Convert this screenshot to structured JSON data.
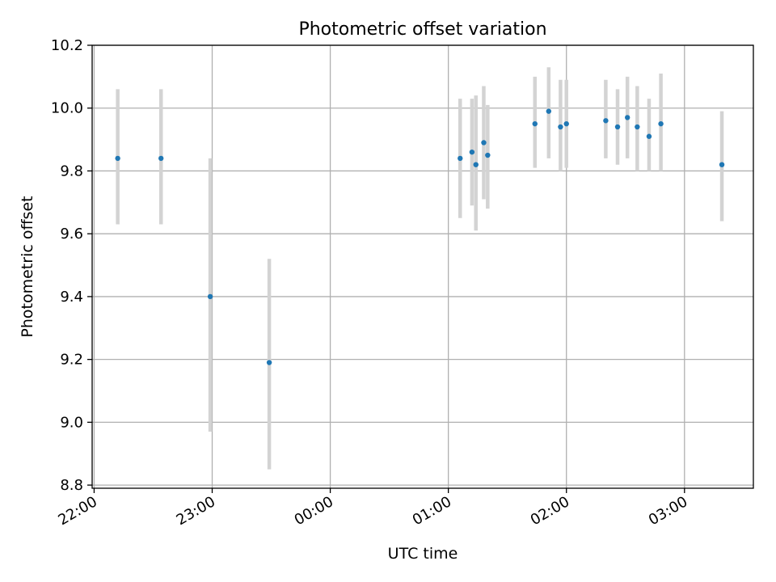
{
  "chart_data": {
    "type": "scatter",
    "title": "Photometric offset variation",
    "xlabel": "UTC time",
    "ylabel": "Photometric offset",
    "grid": true,
    "x_axis": {
      "type": "time",
      "range": [
        "21:59",
        "03:35"
      ],
      "ticks": [
        "22:00",
        "23:00",
        "00:00",
        "01:00",
        "02:00",
        "03:00"
      ]
    },
    "y_axis": {
      "range": [
        8.79,
        10.2
      ],
      "ticks": [
        "8.8",
        "9.0",
        "9.2",
        "9.4",
        "9.6",
        "9.8",
        "10.0",
        "10.2"
      ]
    },
    "series": [
      {
        "color": "#1f77b4",
        "errorbar_color": "#d3d3d3",
        "points": [
          {
            "x": "22:12",
            "y": 9.84,
            "err_low": 9.63,
            "err_high": 10.06
          },
          {
            "x": "22:34",
            "y": 9.84,
            "err_low": 9.63,
            "err_high": 10.06
          },
          {
            "x": "22:59",
            "y": 9.4,
            "err_low": 8.97,
            "err_high": 9.84
          },
          {
            "x": "23:29",
            "y": 9.19,
            "err_low": 8.85,
            "err_high": 9.52
          },
          {
            "x": "01:06",
            "y": 9.84,
            "err_low": 9.65,
            "err_high": 10.03
          },
          {
            "x": "01:12",
            "y": 9.86,
            "err_low": 9.69,
            "err_high": 10.03
          },
          {
            "x": "01:14",
            "y": 9.82,
            "err_low": 9.61,
            "err_high": 10.04
          },
          {
            "x": "01:18",
            "y": 9.89,
            "err_low": 9.71,
            "err_high": 10.07
          },
          {
            "x": "01:20",
            "y": 9.85,
            "err_low": 9.68,
            "err_high": 10.01
          },
          {
            "x": "01:44",
            "y": 9.95,
            "err_low": 9.81,
            "err_high": 10.1
          },
          {
            "x": "01:51",
            "y": 9.99,
            "err_low": 9.84,
            "err_high": 10.13
          },
          {
            "x": "01:57",
            "y": 9.94,
            "err_low": 9.8,
            "err_high": 10.09
          },
          {
            "x": "02:00",
            "y": 9.95,
            "err_low": 9.81,
            "err_high": 10.09
          },
          {
            "x": "02:20",
            "y": 9.96,
            "err_low": 9.84,
            "err_high": 10.09
          },
          {
            "x": "02:26",
            "y": 9.94,
            "err_low": 9.82,
            "err_high": 10.06
          },
          {
            "x": "02:31",
            "y": 9.97,
            "err_low": 9.84,
            "err_high": 10.1
          },
          {
            "x": "02:36",
            "y": 9.94,
            "err_low": 9.8,
            "err_high": 10.07
          },
          {
            "x": "02:42",
            "y": 9.91,
            "err_low": 9.8,
            "err_high": 10.03
          },
          {
            "x": "02:48",
            "y": 9.95,
            "err_low": 9.8,
            "err_high": 10.11
          },
          {
            "x": "03:19",
            "y": 9.82,
            "err_low": 9.64,
            "err_high": 9.99
          }
        ]
      }
    ]
  }
}
